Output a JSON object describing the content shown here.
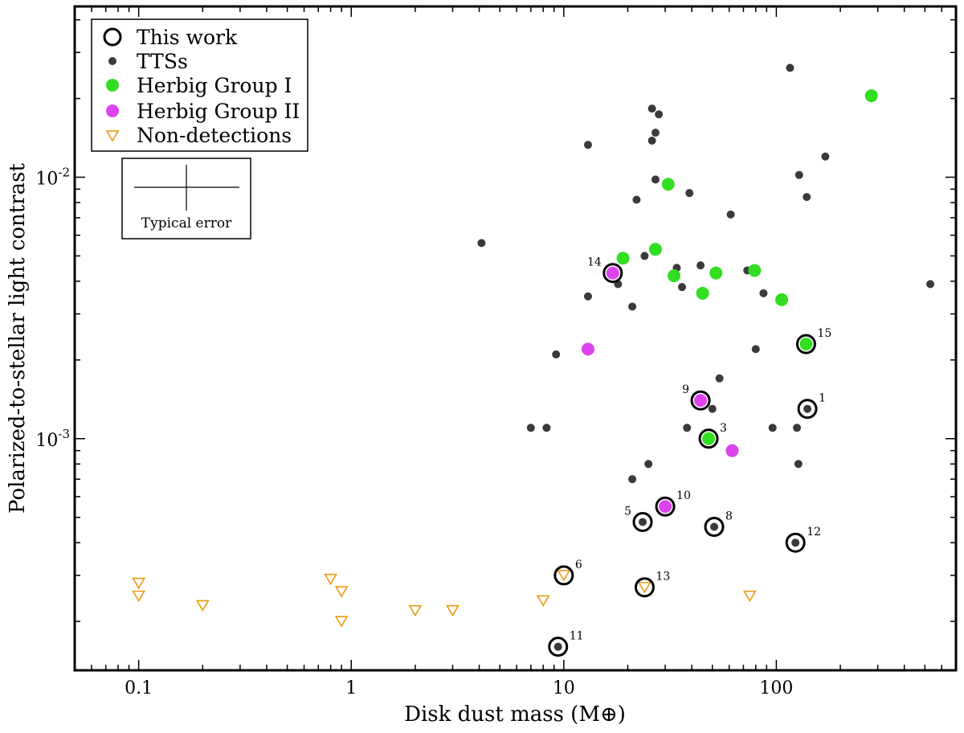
{
  "chart_data": {
    "type": "scatter",
    "xlabel": "Disk dust mass (M⊕)",
    "ylabel": "Polarized-to-stellar light contrast",
    "xscale": "log",
    "yscale": "log",
    "xlim": [
      0.05,
      700
    ],
    "ylim": [
      0.00013,
      0.045
    ],
    "x_ticks": [
      {
        "value": 0.1,
        "label": "0.1"
      },
      {
        "value": 1,
        "label": "1"
      },
      {
        "value": 10,
        "label": "10"
      },
      {
        "value": 100,
        "label": "100"
      }
    ],
    "y_ticks": [
      {
        "value": 0.001,
        "base": "10",
        "exp": "-3"
      },
      {
        "value": 0.01,
        "base": "10",
        "exp": "-2"
      }
    ],
    "legend": {
      "position": "top-left",
      "entries": [
        {
          "label": "This work",
          "marker": "open-circle"
        },
        {
          "label": "TTSs",
          "marker": "dot"
        },
        {
          "label": "Herbig Group I",
          "marker": "green-circle"
        },
        {
          "label": "Herbig Group II",
          "marker": "magenta-circle"
        },
        {
          "label": "Non-detections",
          "marker": "triangle-down"
        }
      ]
    },
    "error_box_label": "Typical error",
    "colors": {
      "ttss": "#3a3a3a",
      "herbig_group_i": "#33dd22",
      "herbig_group_ii": "#dd44ee",
      "non_detections": "#ee9911",
      "this_work": "#000000"
    },
    "series": [
      {
        "name": "TTSs",
        "points": [
          [
            4.1,
            0.0056
          ],
          [
            7,
            0.0011
          ],
          [
            8.3,
            0.0011
          ],
          [
            9.2,
            0.0021
          ],
          [
            13,
            0.0035
          ],
          [
            13,
            0.0133
          ],
          [
            18,
            0.0039
          ],
          [
            21,
            0.0032
          ],
          [
            21,
            0.0007
          ],
          [
            22,
            0.0082
          ],
          [
            24,
            0.005
          ],
          [
            25,
            0.0008
          ],
          [
            26,
            0.0138
          ],
          [
            26,
            0.0183
          ],
          [
            27,
            0.0098
          ],
          [
            27,
            0.0148
          ],
          [
            28,
            0.0174
          ],
          [
            34,
            0.0045
          ],
          [
            36,
            0.0038
          ],
          [
            38,
            0.0011
          ],
          [
            39,
            0.0087
          ],
          [
            44,
            0.0046
          ],
          [
            50,
            0.0013
          ],
          [
            54,
            0.0017
          ],
          [
            61,
            0.0072
          ],
          [
            73,
            0.0044
          ],
          [
            80,
            0.0022
          ],
          [
            87,
            0.0036
          ],
          [
            96,
            0.0011
          ],
          [
            116,
            0.0262
          ],
          [
            125,
            0.0011
          ],
          [
            127,
            0.0008
          ],
          [
            128,
            0.0102
          ],
          [
            139,
            0.0084
          ],
          [
            170,
            0.012
          ],
          [
            530,
            0.0039
          ]
        ]
      },
      {
        "name": "Herbig Group I",
        "points": [
          [
            19,
            0.0049
          ],
          [
            27,
            0.0053
          ],
          [
            31,
            0.0094
          ],
          [
            33,
            0.0042
          ],
          [
            45,
            0.0036
          ],
          [
            52,
            0.0043
          ],
          [
            79,
            0.0044
          ],
          [
            106,
            0.0034
          ],
          [
            280,
            0.0205
          ]
        ]
      },
      {
        "name": "Herbig Group II",
        "points": [
          [
            13,
            0.0022
          ],
          [
            62,
            0.0009
          ]
        ]
      },
      {
        "name": "Non-detections",
        "points": [
          [
            0.1,
            0.00028
          ],
          [
            0.1,
            0.00025
          ],
          [
            0.2,
            0.00023
          ],
          [
            0.8,
            0.00029
          ],
          [
            0.9,
            0.00026
          ],
          [
            0.9,
            0.0002
          ],
          [
            2,
            0.00022
          ],
          [
            3,
            0.00022
          ],
          [
            8,
            0.00024
          ],
          [
            75,
            0.00025
          ]
        ]
      },
      {
        "name": "This work",
        "points": [
          {
            "id": "1",
            "x": 140,
            "y": 0.0013,
            "fill": "ttss",
            "label_pos": "ur"
          },
          {
            "id": "3",
            "x": 48,
            "y": 0.001,
            "fill": "herbig_group_i",
            "label_pos": "ur"
          },
          {
            "id": "5",
            "x": 23.5,
            "y": 0.00048,
            "fill": "ttss",
            "label_pos": "ul"
          },
          {
            "id": "6",
            "x": 10,
            "y": 0.0003,
            "fill": "non_detections",
            "label_pos": "ur"
          },
          {
            "id": "8",
            "x": 51,
            "y": 0.00046,
            "fill": "ttss",
            "label_pos": "ur"
          },
          {
            "id": "9",
            "x": 44,
            "y": 0.0014,
            "fill": "herbig_group_ii",
            "label_pos": "ul"
          },
          {
            "id": "10",
            "x": 30,
            "y": 0.00055,
            "fill": "herbig_group_ii",
            "label_pos": "ur"
          },
          {
            "id": "11",
            "x": 9.4,
            "y": 0.00016,
            "fill": "ttss",
            "label_pos": "ur"
          },
          {
            "id": "12",
            "x": 123,
            "y": 0.0004,
            "fill": "ttss",
            "label_pos": "ur"
          },
          {
            "id": "13",
            "x": 24,
            "y": 0.00027,
            "fill": "non_detections",
            "label_pos": "ur"
          },
          {
            "id": "14",
            "x": 17,
            "y": 0.0043,
            "fill": "herbig_group_ii",
            "label_pos": "ul"
          },
          {
            "id": "15",
            "x": 138,
            "y": 0.0023,
            "fill": "herbig_group_i",
            "label_pos": "ur"
          }
        ]
      }
    ]
  }
}
